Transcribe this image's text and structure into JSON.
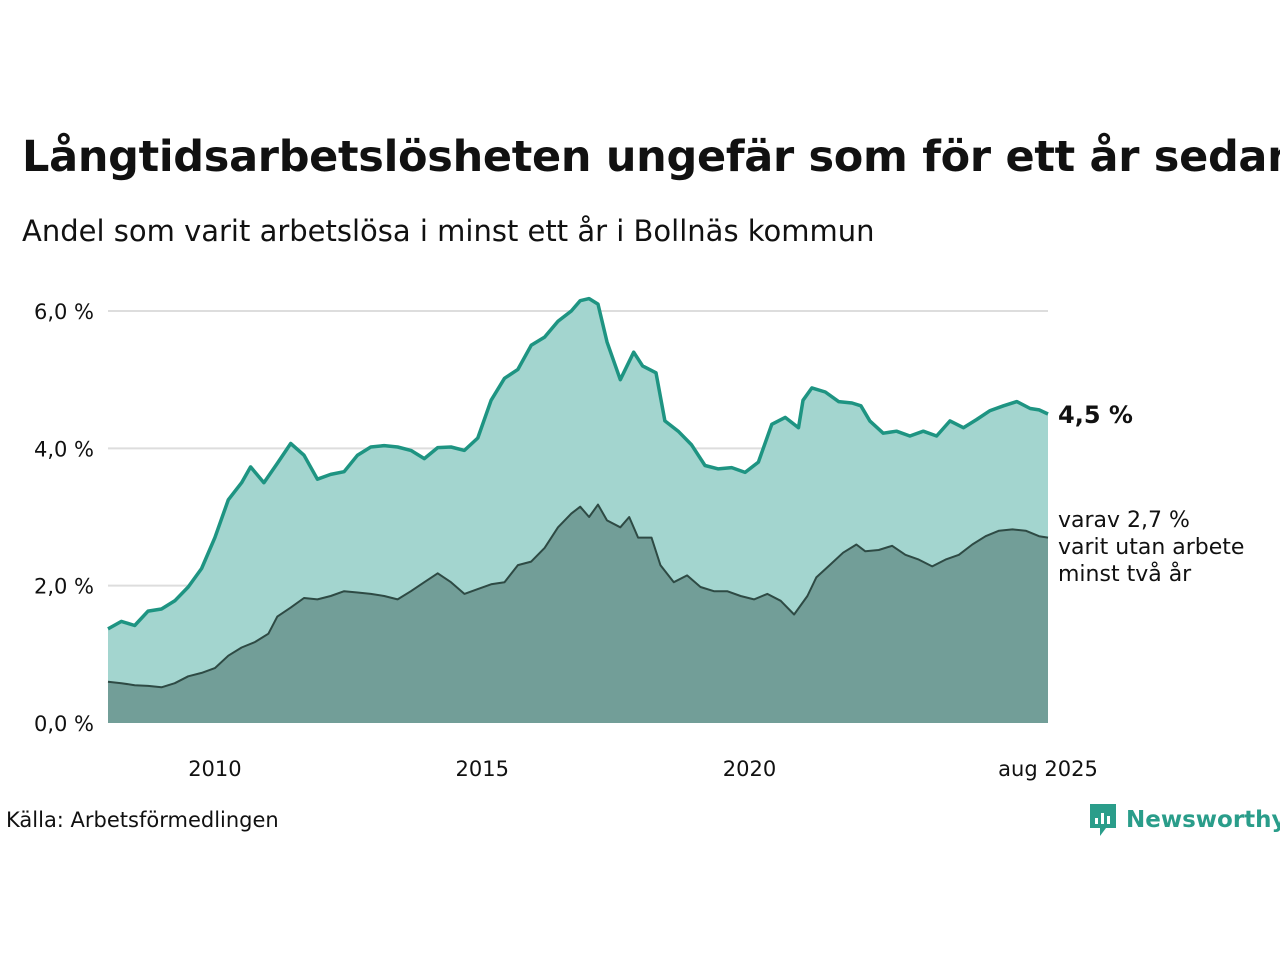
{
  "title": "Långtidsarbetslösheten ungefär som för ett år sedan",
  "subtitle": "Andel som varit arbetslösa i minst ett år i Bollnäs kommun",
  "source": "Källa: Arbetsförmedlingen",
  "brand": "Newsworthy",
  "colors": {
    "line_total": "#1e9482",
    "area_total": "#a3d5cf",
    "line_two_years": "#2e4a44",
    "area_two_years": "#729e98",
    "grid": "#dddddd",
    "brand": "#2a9d8a"
  },
  "chart_data": {
    "type": "area",
    "y_ticks": [
      "0,0 %",
      "2,0 %",
      "4,0 %",
      "6,0 %"
    ],
    "x_ticks": [
      "2010",
      "2015",
      "2020",
      "aug 2025"
    ],
    "ylim": [
      0,
      6.3
    ],
    "xlim": [
      "2008-01",
      "2025-08"
    ],
    "grid": true,
    "annotations": {
      "total": "4,5 %",
      "two_years": [
        "varav 2,7 %",
        "varit utan arbete",
        "minst två år"
      ]
    },
    "series": [
      {
        "key": "total",
        "points": [
          [
            "2008-01",
            1.37
          ],
          [
            "2008-04",
            1.48
          ],
          [
            "2008-07",
            1.42
          ],
          [
            "2008-10",
            1.63
          ],
          [
            "2009-01",
            1.66
          ],
          [
            "2009-04",
            1.78
          ],
          [
            "2009-07",
            1.98
          ],
          [
            "2009-10",
            2.25
          ],
          [
            "2010-01",
            2.7
          ],
          [
            "2010-04",
            3.25
          ],
          [
            "2010-07",
            3.5
          ],
          [
            "2010-09",
            3.73
          ],
          [
            "2010-12",
            3.5
          ],
          [
            "2011-03",
            3.78
          ],
          [
            "2011-06",
            4.07
          ],
          [
            "2011-09",
            3.9
          ],
          [
            "2011-12",
            3.55
          ],
          [
            "2012-03",
            3.62
          ],
          [
            "2012-06",
            3.66
          ],
          [
            "2012-09",
            3.9
          ],
          [
            "2012-12",
            4.02
          ],
          [
            "2013-03",
            4.04
          ],
          [
            "2013-06",
            4.02
          ],
          [
            "2013-09",
            3.97
          ],
          [
            "2013-12",
            3.85
          ],
          [
            "2014-03",
            4.01
          ],
          [
            "2014-06",
            4.02
          ],
          [
            "2014-09",
            3.97
          ],
          [
            "2014-12",
            4.15
          ],
          [
            "2015-03",
            4.7
          ],
          [
            "2015-06",
            5.02
          ],
          [
            "2015-09",
            5.15
          ],
          [
            "2015-12",
            5.5
          ],
          [
            "2016-03",
            5.62
          ],
          [
            "2016-06",
            5.85
          ],
          [
            "2016-09",
            6.0
          ],
          [
            "2016-11",
            6.15
          ],
          [
            "2017-01",
            6.18
          ],
          [
            "2017-03",
            6.1
          ],
          [
            "2017-05",
            5.55
          ],
          [
            "2017-08",
            5.0
          ],
          [
            "2017-11",
            5.4
          ],
          [
            "2018-01",
            5.2
          ],
          [
            "2018-04",
            5.1
          ],
          [
            "2018-06",
            4.4
          ],
          [
            "2018-09",
            4.25
          ],
          [
            "2018-12",
            4.05
          ],
          [
            "2019-03",
            3.75
          ],
          [
            "2019-06",
            3.7
          ],
          [
            "2019-09",
            3.72
          ],
          [
            "2019-12",
            3.65
          ],
          [
            "2020-03",
            3.8
          ],
          [
            "2020-06",
            4.35
          ],
          [
            "2020-09",
            4.45
          ],
          [
            "2020-12",
            4.3
          ],
          [
            "2021-01",
            4.7
          ],
          [
            "2021-03",
            4.88
          ],
          [
            "2021-06",
            4.82
          ],
          [
            "2021-09",
            4.68
          ],
          [
            "2021-12",
            4.66
          ],
          [
            "2022-02",
            4.62
          ],
          [
            "2022-04",
            4.4
          ],
          [
            "2022-07",
            4.22
          ],
          [
            "2022-10",
            4.25
          ],
          [
            "2023-01",
            4.18
          ],
          [
            "2023-04",
            4.25
          ],
          [
            "2023-07",
            4.18
          ],
          [
            "2023-10",
            4.4
          ],
          [
            "2024-01",
            4.3
          ],
          [
            "2024-04",
            4.42
          ],
          [
            "2024-07",
            4.55
          ],
          [
            "2024-10",
            4.62
          ],
          [
            "2025-01",
            4.68
          ],
          [
            "2025-04",
            4.58
          ],
          [
            "2025-06",
            4.56
          ],
          [
            "2025-08",
            4.5
          ]
        ]
      },
      {
        "key": "two_years",
        "points": [
          [
            "2008-01",
            0.6
          ],
          [
            "2008-04",
            0.58
          ],
          [
            "2008-07",
            0.55
          ],
          [
            "2008-10",
            0.54
          ],
          [
            "2009-01",
            0.52
          ],
          [
            "2009-04",
            0.58
          ],
          [
            "2009-07",
            0.68
          ],
          [
            "2009-10",
            0.73
          ],
          [
            "2010-01",
            0.8
          ],
          [
            "2010-04",
            0.98
          ],
          [
            "2010-07",
            1.1
          ],
          [
            "2010-10",
            1.18
          ],
          [
            "2011-01",
            1.3
          ],
          [
            "2011-03",
            1.55
          ],
          [
            "2011-06",
            1.68
          ],
          [
            "2011-09",
            1.82
          ],
          [
            "2011-12",
            1.8
          ],
          [
            "2012-03",
            1.85
          ],
          [
            "2012-06",
            1.92
          ],
          [
            "2012-09",
            1.9
          ],
          [
            "2012-12",
            1.88
          ],
          [
            "2013-03",
            1.85
          ],
          [
            "2013-06",
            1.8
          ],
          [
            "2013-09",
            1.92
          ],
          [
            "2013-12",
            2.05
          ],
          [
            "2014-03",
            2.18
          ],
          [
            "2014-06",
            2.05
          ],
          [
            "2014-09",
            1.88
          ],
          [
            "2014-12",
            1.95
          ],
          [
            "2015-03",
            2.02
          ],
          [
            "2015-06",
            2.05
          ],
          [
            "2015-09",
            2.3
          ],
          [
            "2015-12",
            2.35
          ],
          [
            "2016-03",
            2.55
          ],
          [
            "2016-06",
            2.85
          ],
          [
            "2016-09",
            3.05
          ],
          [
            "2016-11",
            3.15
          ],
          [
            "2017-01",
            3.0
          ],
          [
            "2017-03",
            3.18
          ],
          [
            "2017-05",
            2.95
          ],
          [
            "2017-08",
            2.85
          ],
          [
            "2017-10",
            3.0
          ],
          [
            "2017-12",
            2.7
          ],
          [
            "2018-03",
            2.7
          ],
          [
            "2018-05",
            2.3
          ],
          [
            "2018-08",
            2.05
          ],
          [
            "2018-11",
            2.15
          ],
          [
            "2019-02",
            1.98
          ],
          [
            "2019-05",
            1.92
          ],
          [
            "2019-08",
            1.92
          ],
          [
            "2019-11",
            1.85
          ],
          [
            "2020-02",
            1.8
          ],
          [
            "2020-05",
            1.88
          ],
          [
            "2020-08",
            1.78
          ],
          [
            "2020-11",
            1.58
          ],
          [
            "2021-02",
            1.85
          ],
          [
            "2021-04",
            2.12
          ],
          [
            "2021-07",
            2.3
          ],
          [
            "2021-10",
            2.48
          ],
          [
            "2022-01",
            2.6
          ],
          [
            "2022-03",
            2.5
          ],
          [
            "2022-06",
            2.52
          ],
          [
            "2022-09",
            2.58
          ],
          [
            "2022-12",
            2.45
          ],
          [
            "2023-03",
            2.38
          ],
          [
            "2023-06",
            2.28
          ],
          [
            "2023-09",
            2.38
          ],
          [
            "2023-12",
            2.45
          ],
          [
            "2024-03",
            2.6
          ],
          [
            "2024-06",
            2.72
          ],
          [
            "2024-09",
            2.8
          ],
          [
            "2024-12",
            2.82
          ],
          [
            "2025-03",
            2.8
          ],
          [
            "2025-06",
            2.72
          ],
          [
            "2025-08",
            2.7
          ]
        ]
      }
    ]
  }
}
